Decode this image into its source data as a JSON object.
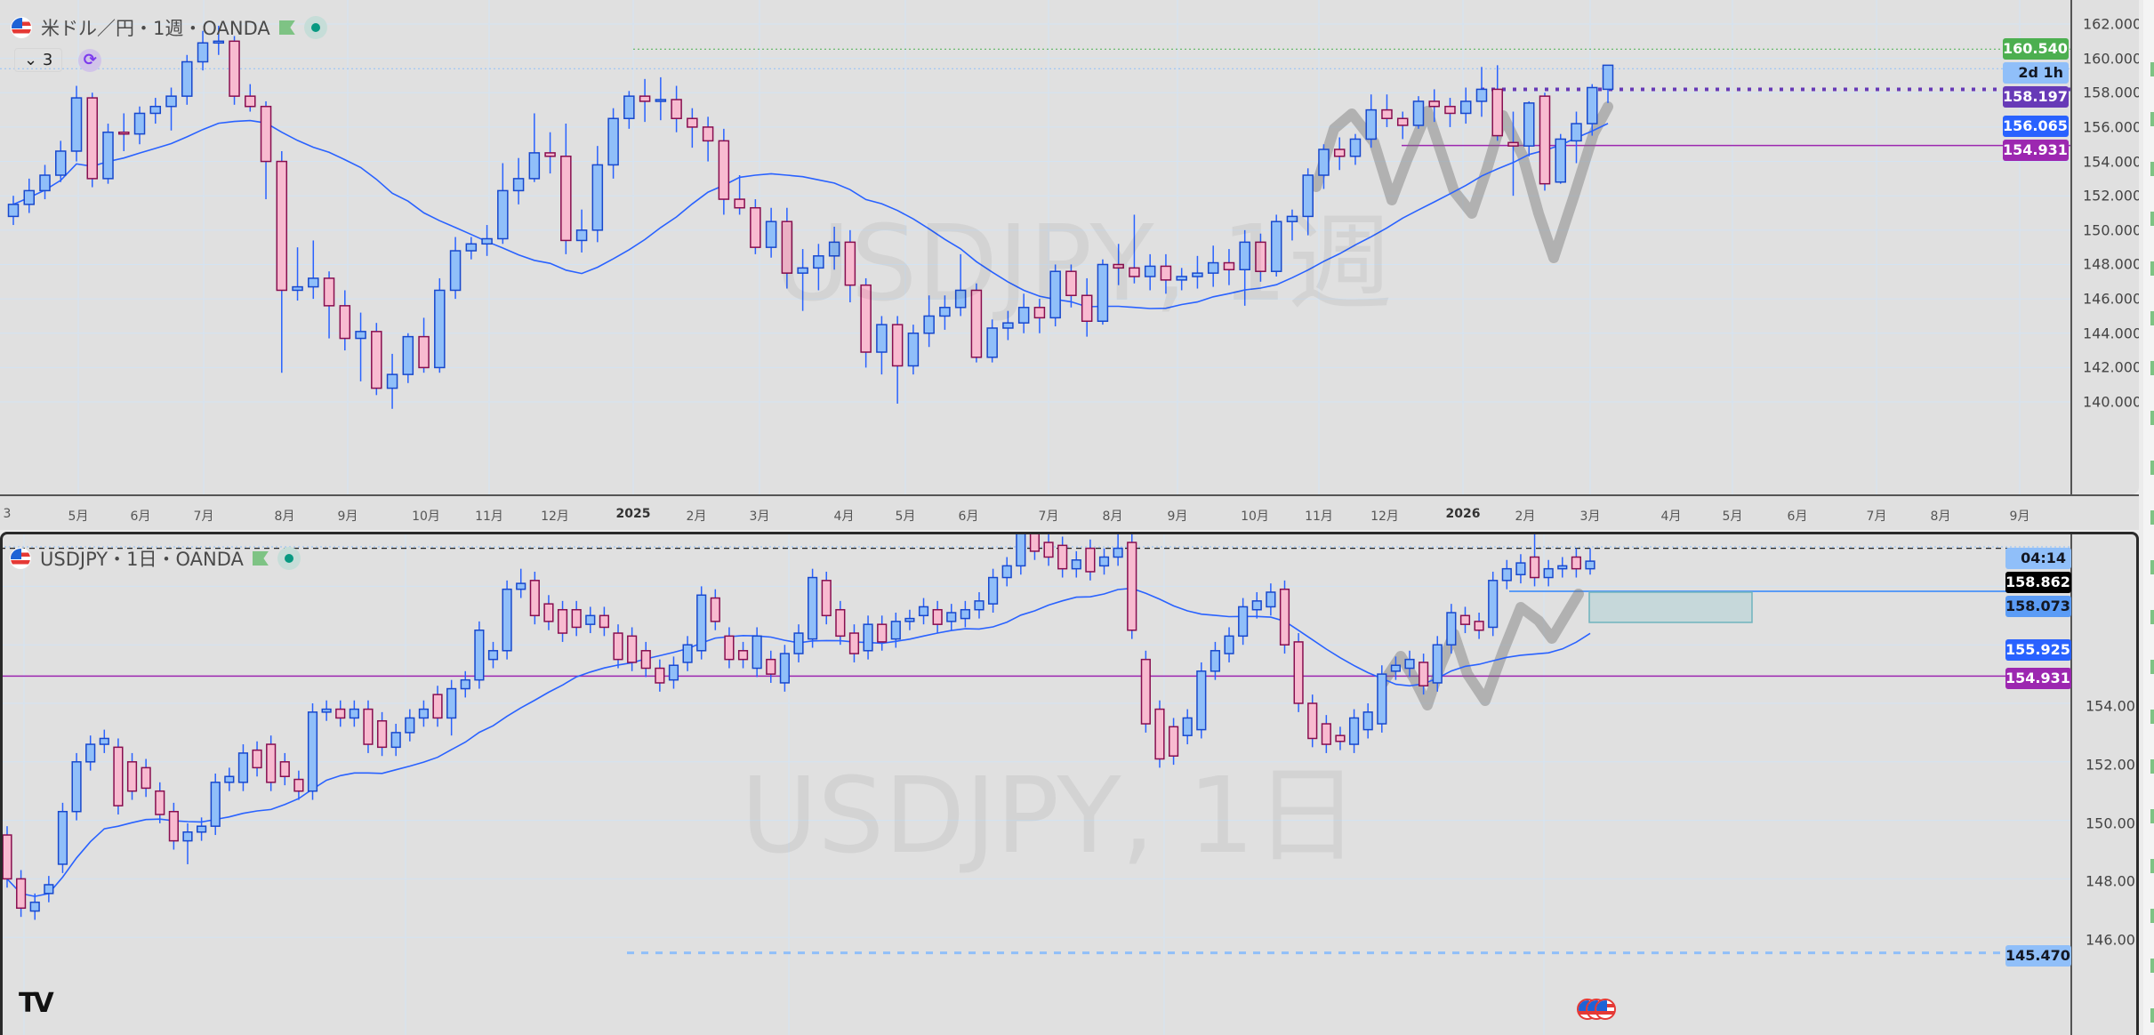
{
  "top": {
    "legend": {
      "title": "米ドル／円・1週・OANDA",
      "collapse_count": "3"
    },
    "watermark": "USDJPY, 1週",
    "price_ticks": [
      "162.000",
      "160.000",
      "158.000",
      "156.000",
      "154.000",
      "152.000",
      "150.000",
      "148.000",
      "146.000",
      "144.000",
      "142.000",
      "140.000"
    ],
    "price_labels": [
      {
        "text": "160.540",
        "value": 160.54,
        "color": "#4caf50"
      },
      {
        "text": "2d 1h",
        "value": 159.4,
        "color": "#90bff9",
        "dark": true
      },
      {
        "text": "158.197",
        "value": 158.197,
        "color": "#673ab7"
      },
      {
        "text": "156.065",
        "value": 156.065,
        "color": "#2962ff"
      },
      {
        "text": "154.931",
        "value": 154.931,
        "color": "#9c27b0"
      }
    ],
    "ylim": [
      140,
      162
    ],
    "candles": [
      [
        150.8,
        152.0,
        150.3,
        151.5
      ],
      [
        151.5,
        153.0,
        151.0,
        152.3
      ],
      [
        152.3,
        153.8,
        151.8,
        153.2
      ],
      [
        153.2,
        155.2,
        152.8,
        154.6
      ],
      [
        154.6,
        158.4,
        154.0,
        157.7
      ],
      [
        157.7,
        158.0,
        152.5,
        153.0
      ],
      [
        153.0,
        156.2,
        152.7,
        155.7
      ],
      [
        155.7,
        156.8,
        154.6,
        155.6
      ],
      [
        155.6,
        157.2,
        155.0,
        156.8
      ],
      [
        156.8,
        157.7,
        156.2,
        157.2
      ],
      [
        157.2,
        158.3,
        155.8,
        157.8
      ],
      [
        157.8,
        160.2,
        157.3,
        159.8
      ],
      [
        159.8,
        161.6,
        159.3,
        160.9
      ],
      [
        160.9,
        161.9,
        160.2,
        161.0
      ],
      [
        161.0,
        161.3,
        157.3,
        157.8
      ],
      [
        157.8,
        158.5,
        156.9,
        157.2
      ],
      [
        157.2,
        157.5,
        151.8,
        154.0
      ],
      [
        154.0,
        154.6,
        141.7,
        146.5
      ],
      [
        146.5,
        149.0,
        145.9,
        146.7
      ],
      [
        146.7,
        149.4,
        146.0,
        147.2
      ],
      [
        147.2,
        147.6,
        143.7,
        145.6
      ],
      [
        145.6,
        146.5,
        143.0,
        143.7
      ],
      [
        143.7,
        145.2,
        141.2,
        144.1
      ],
      [
        144.1,
        144.6,
        140.4,
        140.8
      ],
      [
        140.8,
        142.8,
        139.6,
        141.6
      ],
      [
        141.6,
        144.0,
        141.1,
        143.8
      ],
      [
        143.8,
        144.9,
        141.7,
        142.0
      ],
      [
        142.0,
        147.2,
        141.7,
        146.5
      ],
      [
        146.5,
        149.6,
        146.0,
        148.8
      ],
      [
        148.8,
        149.6,
        148.3,
        149.2
      ],
      [
        149.2,
        150.3,
        148.5,
        149.5
      ],
      [
        149.5,
        153.9,
        149.2,
        152.3
      ],
      [
        152.3,
        154.2,
        151.5,
        153.0
      ],
      [
        153.0,
        156.8,
        152.8,
        154.5
      ],
      [
        154.5,
        155.7,
        153.3,
        154.3
      ],
      [
        154.3,
        156.2,
        148.6,
        149.4
      ],
      [
        149.4,
        151.2,
        148.7,
        150.0
      ],
      [
        150.0,
        154.9,
        149.3,
        153.8
      ],
      [
        153.8,
        157.1,
        153.0,
        156.5
      ],
      [
        156.5,
        158.1,
        155.9,
        157.8
      ],
      [
        157.8,
        158.8,
        156.3,
        157.5
      ],
      [
        157.5,
        158.9,
        156.4,
        157.6
      ],
      [
        157.6,
        158.4,
        155.7,
        156.5
      ],
      [
        156.5,
        157.1,
        154.8,
        156.0
      ],
      [
        156.0,
        156.6,
        154.0,
        155.2
      ],
      [
        155.2,
        155.9,
        150.9,
        151.8
      ],
      [
        151.8,
        153.2,
        150.9,
        151.3
      ],
      [
        151.3,
        151.8,
        148.6,
        149.0
      ],
      [
        149.0,
        151.3,
        148.4,
        150.5
      ],
      [
        150.5,
        151.3,
        146.6,
        147.5
      ],
      [
        147.5,
        148.9,
        145.3,
        147.8
      ],
      [
        147.8,
        149.2,
        146.5,
        148.5
      ],
      [
        148.5,
        150.2,
        147.7,
        149.3
      ],
      [
        149.3,
        150.0,
        145.8,
        146.8
      ],
      [
        146.8,
        147.2,
        142.0,
        142.9
      ],
      [
        142.9,
        145.0,
        141.6,
        144.5
      ],
      [
        144.5,
        145.0,
        139.9,
        142.1
      ],
      [
        142.1,
        144.5,
        141.6,
        144.0
      ],
      [
        144.0,
        146.2,
        143.2,
        145.0
      ],
      [
        145.0,
        146.2,
        144.2,
        145.5
      ],
      [
        145.5,
        148.6,
        145.0,
        146.5
      ],
      [
        146.5,
        146.9,
        142.3,
        142.6
      ],
      [
        142.6,
        144.8,
        142.3,
        144.3
      ],
      [
        144.3,
        145.3,
        143.6,
        144.6
      ],
      [
        144.6,
        146.3,
        144.0,
        145.5
      ],
      [
        145.5,
        146.0,
        144.0,
        144.9
      ],
      [
        144.9,
        148.0,
        144.4,
        147.6
      ],
      [
        147.6,
        148.0,
        145.5,
        146.2
      ],
      [
        146.2,
        147.2,
        143.8,
        144.7
      ],
      [
        144.7,
        148.3,
        144.5,
        148.0
      ],
      [
        148.0,
        149.2,
        146.8,
        147.8
      ],
      [
        147.8,
        150.9,
        146.9,
        147.3
      ],
      [
        147.3,
        148.6,
        146.5,
        147.9
      ],
      [
        147.9,
        148.6,
        146.3,
        147.1
      ],
      [
        147.1,
        147.8,
        146.5,
        147.3
      ],
      [
        147.3,
        148.5,
        146.6,
        147.5
      ],
      [
        147.5,
        149.1,
        146.7,
        148.1
      ],
      [
        148.1,
        148.9,
        146.8,
        147.7
      ],
      [
        147.7,
        150.0,
        145.6,
        149.3
      ],
      [
        149.3,
        149.8,
        147.0,
        147.6
      ],
      [
        147.6,
        150.9,
        147.3,
        150.5
      ],
      [
        150.5,
        151.2,
        149.4,
        150.8
      ],
      [
        150.8,
        153.6,
        149.7,
        153.2
      ],
      [
        153.2,
        155.0,
        152.4,
        154.7
      ],
      [
        154.7,
        155.4,
        153.5,
        154.3
      ],
      [
        154.3,
        155.6,
        153.8,
        155.3
      ],
      [
        155.3,
        157.9,
        154.8,
        157.0
      ],
      [
        157.0,
        157.9,
        156.0,
        156.5
      ],
      [
        156.5,
        156.9,
        155.3,
        156.1
      ],
      [
        156.1,
        157.8,
        155.9,
        157.5
      ],
      [
        157.5,
        158.2,
        156.3,
        157.2
      ],
      [
        157.2,
        157.7,
        156.0,
        156.8
      ],
      [
        156.8,
        158.3,
        156.2,
        157.5
      ],
      [
        157.5,
        159.5,
        156.6,
        158.2
      ],
      [
        158.2,
        159.6,
        155.2,
        155.5
      ],
      [
        155.1,
        156.9,
        152.0,
        154.9
      ],
      [
        154.9,
        157.5,
        154.3,
        157.4
      ],
      [
        157.8,
        158.0,
        152.3,
        152.7
      ],
      [
        152.8,
        155.6,
        152.7,
        155.3
      ],
      [
        155.2,
        156.9,
        153.9,
        156.2
      ],
      [
        156.2,
        158.5,
        155.5,
        158.3
      ],
      [
        158.2,
        159.6,
        157.4,
        159.6
      ]
    ]
  },
  "time_axis": [
    "3",
    "5月",
    "6月",
    "7月",
    "8月",
    "9月",
    "10月",
    "11月",
    "12月",
    "2025",
    "2月",
    "3月",
    "4月",
    "5月",
    "6月",
    "7月",
    "8月",
    "9月",
    "10月",
    "11月",
    "12月",
    "2026",
    "2月",
    "3月",
    "4月",
    "5月",
    "6月",
    "7月",
    "8月",
    "9月"
  ],
  "bottom": {
    "legend": {
      "title": "USDJPY・1日・OANDA"
    },
    "watermark": "USDJPY, 1日",
    "price_ticks": [
      "154.000",
      "152.000",
      "150.000",
      "148.000",
      "146.000"
    ],
    "price_labels": [
      {
        "text": "04:14",
        "value": 159.05,
        "color": "#90bff9",
        "dark": true
      },
      {
        "text": "158.862",
        "value": 158.6,
        "color": "#000000"
      },
      {
        "text": "158.073",
        "value": 157.85,
        "color": "#5b9cf6",
        "dark": true
      },
      {
        "text": "155.925",
        "value": 155.925,
        "color": "#2962ff"
      },
      {
        "text": "154.931",
        "value": 154.931,
        "color": "#9c27b0"
      },
      {
        "text": "145.470",
        "value": 145.47,
        "color": "#90bff9",
        "dark": true
      }
    ],
    "ylim": [
      145.5,
      159.4
    ],
    "candles": [
      [
        149.5,
        149.8,
        147.7,
        148.0
      ],
      [
        148.0,
        148.3,
        146.7,
        147.0
      ],
      [
        146.9,
        147.5,
        146.6,
        147.2
      ],
      [
        147.5,
        148.1,
        147.2,
        147.8
      ],
      [
        148.5,
        150.6,
        148.2,
        150.3
      ],
      [
        150.3,
        152.3,
        150.0,
        152.0
      ],
      [
        152.0,
        152.9,
        151.7,
        152.6
      ],
      [
        152.6,
        153.1,
        152.3,
        152.8
      ],
      [
        152.5,
        152.8,
        150.2,
        150.5
      ],
      [
        152.0,
        152.3,
        150.7,
        151.0
      ],
      [
        151.8,
        152.1,
        150.8,
        151.1
      ],
      [
        151.0,
        151.3,
        149.9,
        150.2
      ],
      [
        150.3,
        150.6,
        149.0,
        149.3
      ],
      [
        149.3,
        149.9,
        148.5,
        149.6
      ],
      [
        149.6,
        150.1,
        149.3,
        149.8
      ],
      [
        149.8,
        151.6,
        149.5,
        151.3
      ],
      [
        151.3,
        151.8,
        151.0,
        151.5
      ],
      [
        151.3,
        152.6,
        151.0,
        152.3
      ],
      [
        152.4,
        152.7,
        151.5,
        151.8
      ],
      [
        152.6,
        152.9,
        151.0,
        151.3
      ],
      [
        152.0,
        152.3,
        151.2,
        151.5
      ],
      [
        151.4,
        151.7,
        150.7,
        151.0
      ],
      [
        151.0,
        154.0,
        150.7,
        153.7
      ],
      [
        153.7,
        154.1,
        153.4,
        153.8
      ],
      [
        153.8,
        154.1,
        153.2,
        153.5
      ],
      [
        153.5,
        154.1,
        153.2,
        153.8
      ],
      [
        153.8,
        154.1,
        152.3,
        152.6
      ],
      [
        153.4,
        153.7,
        152.2,
        152.5
      ],
      [
        152.5,
        153.3,
        152.2,
        153.0
      ],
      [
        153.0,
        153.8,
        152.7,
        153.5
      ],
      [
        153.5,
        154.1,
        153.2,
        153.8
      ],
      [
        154.3,
        154.6,
        153.2,
        153.5
      ],
      [
        153.5,
        154.8,
        152.9,
        154.5
      ],
      [
        154.5,
        155.1,
        154.2,
        154.8
      ],
      [
        154.8,
        156.8,
        154.5,
        156.5
      ],
      [
        155.5,
        156.1,
        155.2,
        155.8
      ],
      [
        155.8,
        158.2,
        155.5,
        157.9
      ],
      [
        157.9,
        158.6,
        157.6,
        158.1
      ],
      [
        158.2,
        158.5,
        156.7,
        157.0
      ],
      [
        157.4,
        157.7,
        156.5,
        156.8
      ],
      [
        157.2,
        157.5,
        156.1,
        156.4
      ],
      [
        157.2,
        157.5,
        156.3,
        156.6
      ],
      [
        156.7,
        157.3,
        156.4,
        157.0
      ],
      [
        157.0,
        157.3,
        156.3,
        156.6
      ],
      [
        156.4,
        156.7,
        155.2,
        155.5
      ],
      [
        156.3,
        156.6,
        155.1,
        155.4
      ],
      [
        155.8,
        156.1,
        154.9,
        155.2
      ],
      [
        155.2,
        155.5,
        154.4,
        154.7
      ],
      [
        154.8,
        155.6,
        154.5,
        155.3
      ],
      [
        155.4,
        156.3,
        155.1,
        156.0
      ],
      [
        155.8,
        158.0,
        155.5,
        157.7
      ],
      [
        157.6,
        157.9,
        156.5,
        156.8
      ],
      [
        156.3,
        156.6,
        155.2,
        155.5
      ],
      [
        155.8,
        156.1,
        155.2,
        155.5
      ],
      [
        155.2,
        156.6,
        154.9,
        156.3
      ],
      [
        155.5,
        155.8,
        154.7,
        155.0
      ],
      [
        154.7,
        156.0,
        154.4,
        155.7
      ],
      [
        155.7,
        156.7,
        155.4,
        156.4
      ],
      [
        156.2,
        158.6,
        155.9,
        158.3
      ],
      [
        158.2,
        158.5,
        156.7,
        157.0
      ],
      [
        157.2,
        157.5,
        156.0,
        156.3
      ],
      [
        156.4,
        156.7,
        155.4,
        155.7
      ],
      [
        155.8,
        157.0,
        155.5,
        156.7
      ],
      [
        156.7,
        157.0,
        155.8,
        156.1
      ],
      [
        156.2,
        157.1,
        155.9,
        156.8
      ],
      [
        156.8,
        157.2,
        156.5,
        156.9
      ],
      [
        157.0,
        157.6,
        156.7,
        157.3
      ],
      [
        157.2,
        157.5,
        156.4,
        156.7
      ],
      [
        156.8,
        157.4,
        156.5,
        157.1
      ],
      [
        156.9,
        157.5,
        156.6,
        157.2
      ],
      [
        157.2,
        157.8,
        156.9,
        157.5
      ],
      [
        157.4,
        158.6,
        157.1,
        158.3
      ],
      [
        158.3,
        159.0,
        158.0,
        158.7
      ],
      [
        158.7,
        160.6,
        158.4,
        160.3
      ],
      [
        160.5,
        160.8,
        158.9,
        159.2
      ],
      [
        159.5,
        159.8,
        158.7,
        159.0
      ],
      [
        159.4,
        159.7,
        158.3,
        158.6
      ],
      [
        158.6,
        159.2,
        158.3,
        158.9
      ],
      [
        159.3,
        159.6,
        158.2,
        158.5
      ],
      [
        158.7,
        159.3,
        158.4,
        159.0
      ],
      [
        159.0,
        160.3,
        158.7,
        159.3
      ],
      [
        159.5,
        159.8,
        156.2,
        156.5
      ],
      [
        155.5,
        155.8,
        153.0,
        153.3
      ],
      [
        153.8,
        154.1,
        151.8,
        152.1
      ],
      [
        153.2,
        153.5,
        151.9,
        152.2
      ],
      [
        152.9,
        153.8,
        152.6,
        153.5
      ],
      [
        153.1,
        155.4,
        152.8,
        155.1
      ],
      [
        155.1,
        156.1,
        154.8,
        155.8
      ],
      [
        155.7,
        156.6,
        155.4,
        156.3
      ],
      [
        156.3,
        157.6,
        156.0,
        157.3
      ],
      [
        157.2,
        157.8,
        156.9,
        157.5
      ],
      [
        157.3,
        158.1,
        157.0,
        157.8
      ],
      [
        157.9,
        158.2,
        155.7,
        156.0
      ],
      [
        156.1,
        156.4,
        153.7,
        154.0
      ],
      [
        154.0,
        154.3,
        152.5,
        152.8
      ],
      [
        153.3,
        153.6,
        152.3,
        152.6
      ],
      [
        152.9,
        153.2,
        152.4,
        152.7
      ],
      [
        152.6,
        153.8,
        152.3,
        153.5
      ],
      [
        153.1,
        154.0,
        152.8,
        153.7
      ],
      [
        153.3,
        155.3,
        153.0,
        155.0
      ],
      [
        155.1,
        155.6,
        154.8,
        155.3
      ],
      [
        155.2,
        155.8,
        154.9,
        155.5
      ],
      [
        155.4,
        155.7,
        154.3,
        154.6
      ],
      [
        154.7,
        156.3,
        154.4,
        156.0
      ],
      [
        156.0,
        157.4,
        155.7,
        157.1
      ],
      [
        157.0,
        157.3,
        156.4,
        156.7
      ],
      [
        156.8,
        157.1,
        156.2,
        156.5
      ],
      [
        156.6,
        158.5,
        156.3,
        158.2
      ],
      [
        158.2,
        158.9,
        157.9,
        158.6
      ],
      [
        158.4,
        159.1,
        158.1,
        158.8
      ],
      [
        159.0,
        159.8,
        158.0,
        158.3
      ],
      [
        158.3,
        158.9,
        158.0,
        158.6
      ],
      [
        158.6,
        159.0,
        158.3,
        158.7
      ],
      [
        159.0,
        159.3,
        158.3,
        158.6
      ],
      [
        158.6,
        159.3,
        158.4,
        158.86
      ]
    ]
  },
  "colors": {
    "bull_fill": "#90bff9",
    "bull_border": "#1848cc",
    "bear_fill": "#f8bbd0",
    "bear_border": "#880e4f",
    "wick": "#2962ff",
    "ma": "#2962ff",
    "hline": "#9c27b0",
    "grid": "#d3e3f3"
  },
  "icons": {
    "symbol": "us-flag-icon",
    "flag": "green-flag-icon",
    "status": "market-open-dot-icon",
    "sync": "sync-icon",
    "logo": "tradingview-logo-icon"
  }
}
